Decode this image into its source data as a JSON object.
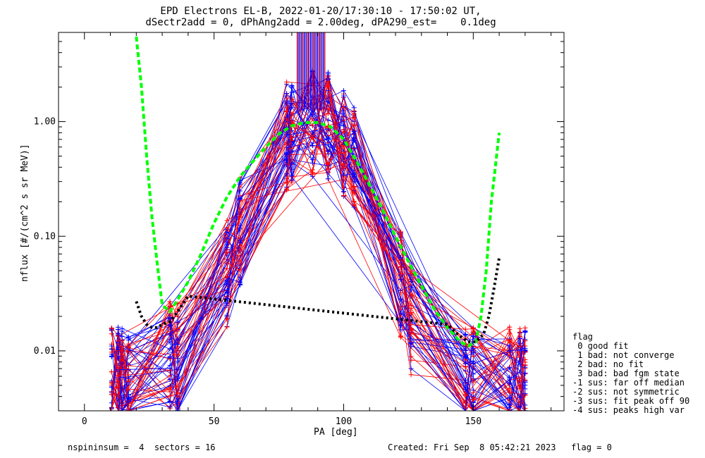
{
  "chart_data": {
    "type": "line",
    "title": "EPD Electrons EL-B, 2022-01-20/17:30:10 - 17:50:02 UT,",
    "subtitle": "dSectr2add = 0, dPhAng2add = 2.00deg, dPA290_est=    0.1deg",
    "xlabel": "PA [deg]",
    "ylabel": "nflux [#/(cm^2 s sr MeV)]",
    "xlim": [
      -10,
      185
    ],
    "ylim": [
      0.003,
      6
    ],
    "yscale": "log",
    "x_ticks": [
      0,
      50,
      100,
      150
    ],
    "y_ticks": [
      {
        "value": 0.01,
        "label": "0.01"
      },
      {
        "value": 0.1,
        "label": "0.10"
      },
      {
        "value": 1.0,
        "label": "1.00"
      }
    ],
    "series": [
      {
        "color": "#00ff00",
        "style": "dashed",
        "x": [
          20,
          22,
          24,
          26,
          28,
          30,
          33,
          36,
          40,
          45,
          50,
          55,
          60,
          65,
          70,
          75,
          80,
          85,
          90,
          95,
          100,
          105,
          110,
          115,
          120,
          125,
          130,
          135,
          140,
          145,
          148,
          151,
          153,
          155,
          157,
          160
        ],
        "y": [
          5.5,
          2.0,
          0.5,
          0.15,
          0.06,
          0.025,
          0.022,
          0.028,
          0.04,
          0.07,
          0.13,
          0.22,
          0.33,
          0.45,
          0.6,
          0.78,
          0.92,
          0.98,
          0.98,
          0.9,
          0.7,
          0.45,
          0.28,
          0.17,
          0.1,
          0.06,
          0.037,
          0.023,
          0.016,
          0.012,
          0.011,
          0.012,
          0.02,
          0.05,
          0.2,
          0.8
        ]
      },
      {
        "color": "#000000",
        "style": "dotted",
        "x": [
          20,
          22,
          24,
          26,
          28,
          30,
          33,
          36,
          40,
          140,
          144,
          148,
          151,
          154,
          156,
          158,
          160
        ],
        "y": [
          0.027,
          0.02,
          0.017,
          0.016,
          0.016,
          0.017,
          0.018,
          0.022,
          0.03,
          0.017,
          0.014,
          0.012,
          0.012,
          0.014,
          0.02,
          0.035,
          0.065
        ]
      }
    ],
    "legend": {
      "title": "flag",
      "entries": [
        " 0 good fit",
        " 1 bad: not converge",
        " 2 bad: no fit",
        " 3 bad: bad fgm state",
        "-1 sus: far off median",
        "-2 sus: not symmetric",
        "-3 sus: fit peak off 90",
        "-4 sus: peaks high var"
      ],
      "placement": "right-bottom"
    },
    "footer_left": "nspininsum =  4  sectors = 16",
    "footer_right": "Created: Fri Sep  8 05:42:21 2023   flag = 0",
    "trace_colors": {
      "blue": "#0000ff",
      "red": "#ff0000"
    }
  }
}
